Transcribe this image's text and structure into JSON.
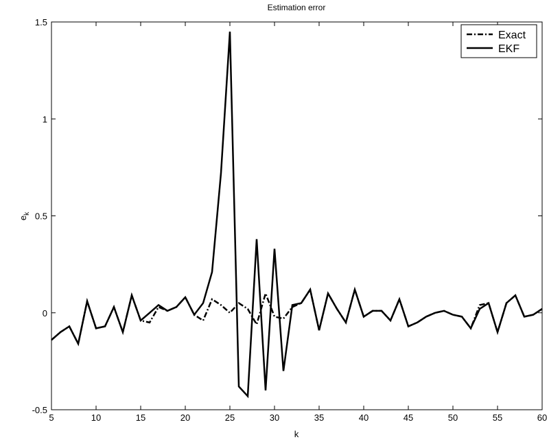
{
  "chart_data": {
    "type": "line",
    "title": "Estimation error",
    "xlabel": "k",
    "ylabel": "e_k",
    "xlim": [
      5,
      60
    ],
    "ylim": [
      -0.5,
      1.5
    ],
    "xticks": [
      5,
      10,
      15,
      20,
      25,
      30,
      35,
      40,
      45,
      50,
      55,
      60
    ],
    "yticks": [
      -0.5,
      0,
      0.5,
      1,
      1.5
    ],
    "grid": false,
    "legend_position": "top-right",
    "series": [
      {
        "name": "Exact",
        "style": "dash-dot",
        "x": [
          5,
          6,
          7,
          8,
          9,
          10,
          11,
          12,
          13,
          14,
          15,
          16,
          17,
          18,
          19,
          20,
          21,
          22,
          23,
          24,
          25,
          26,
          27,
          28,
          29,
          30,
          31,
          32,
          33,
          34,
          35,
          36,
          37,
          38,
          39,
          40,
          41,
          42,
          43,
          44,
          45,
          46,
          47,
          48,
          49,
          50,
          51,
          52,
          53,
          54,
          55,
          56,
          57,
          58,
          59,
          60
        ],
        "y": [
          -0.14,
          -0.1,
          -0.07,
          -0.16,
          0.06,
          -0.08,
          -0.07,
          0.03,
          -0.1,
          0.09,
          -0.04,
          -0.05,
          0.03,
          0.01,
          0.03,
          0.08,
          -0.01,
          -0.04,
          0.07,
          0.04,
          0.0,
          0.05,
          0.02,
          -0.06,
          0.1,
          -0.02,
          -0.03,
          0.03,
          0.05,
          0.12,
          -0.09,
          0.1,
          0.02,
          -0.05,
          0.12,
          -0.02,
          0.01,
          0.01,
          -0.04,
          0.07,
          -0.07,
          -0.05,
          -0.02,
          0.0,
          0.01,
          -0.01,
          -0.02,
          -0.08,
          0.04,
          0.05,
          -0.1,
          0.05,
          0.09,
          -0.02,
          -0.01,
          0.02
        ]
      },
      {
        "name": "EKF",
        "style": "solid",
        "x": [
          5,
          6,
          7,
          8,
          9,
          10,
          11,
          12,
          13,
          14,
          15,
          16,
          17,
          18,
          19,
          20,
          21,
          22,
          23,
          24,
          25,
          26,
          27,
          28,
          29,
          30,
          31,
          32,
          33,
          34,
          35,
          36,
          37,
          38,
          39,
          40,
          41,
          42,
          43,
          44,
          45,
          46,
          47,
          48,
          49,
          50,
          51,
          52,
          53,
          54,
          55,
          56,
          57,
          58,
          59,
          60
        ],
        "y": [
          -0.14,
          -0.1,
          -0.07,
          -0.16,
          0.06,
          -0.08,
          -0.07,
          0.03,
          -0.1,
          0.09,
          -0.04,
          0.0,
          0.04,
          0.01,
          0.03,
          0.08,
          -0.01,
          0.05,
          0.21,
          0.72,
          1.45,
          -0.38,
          -0.43,
          0.38,
          -0.4,
          0.33,
          -0.3,
          0.04,
          0.05,
          0.12,
          -0.09,
          0.1,
          0.02,
          -0.05,
          0.12,
          -0.02,
          0.01,
          0.01,
          -0.04,
          0.07,
          -0.07,
          -0.05,
          -0.02,
          0.0,
          0.01,
          -0.01,
          -0.02,
          -0.08,
          0.02,
          0.05,
          -0.1,
          0.05,
          0.09,
          -0.02,
          -0.01,
          0.02
        ]
      }
    ]
  }
}
